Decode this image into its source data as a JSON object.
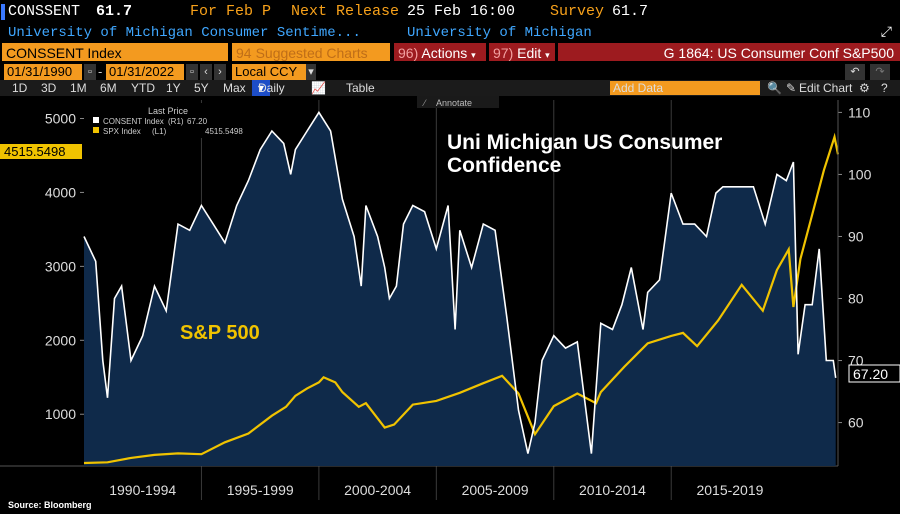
{
  "header": {
    "ticker": "CONSSENT",
    "value": "61.7",
    "period_label": "For Feb P",
    "next_release_label": "Next Release",
    "next_release_value": "25 Feb 16:00",
    "survey_label": "Survey",
    "survey_value": "61.7",
    "description": "University of Michigan Consumer Sentime...",
    "source_name": "University of Michigan",
    "expand_icon": "expand-icon"
  },
  "toolbar": {
    "security": "CONSSENT Index",
    "suggested": "Suggested Charts",
    "suggested_num": "94",
    "actions": "Actions",
    "actions_num": "96)",
    "edit": "Edit",
    "edit_num": "97)",
    "chart_id": "G 1864: US Consumer Conf S&P500",
    "start_date": "01/31/1990",
    "end_date": "01/31/2022",
    "currency": "Local CCY",
    "ranges": [
      "1D",
      "3D",
      "1M",
      "6M",
      "YTD",
      "1Y",
      "5Y",
      "Max"
    ],
    "frequency": "Daily",
    "table": "Table",
    "add_data": "Add Data",
    "edit_chart": "Edit Chart",
    "annotate": "Annotate"
  },
  "colors": {
    "consent": "#ffffff",
    "spx": "#f0c300",
    "area": "#0f2a4a",
    "accent": "#f39a1f",
    "red_bar": "#9d1b1f",
    "selected": "#1d4dc7"
  },
  "chart_data": {
    "type": "line",
    "title": "Uni Michigan US Consumer Confidence",
    "annotation": "S&P 500",
    "legend_title": "Last Price",
    "legend": [
      {
        "name": "CONSENT Index",
        "axis": "R1",
        "last": "67.20",
        "color": "#ffffff"
      },
      {
        "name": "SPX Index",
        "axis": "L1",
        "last": "4515.5498",
        "color": "#f0c300"
      }
    ],
    "left_axis": {
      "ticks": [
        1000,
        2000,
        3000,
        4000,
        5000
      ],
      "range": [
        300,
        5250
      ],
      "last_label": "4515.5498",
      "last_value": 4515.5498
    },
    "right_axis": {
      "ticks": [
        60,
        70,
        80,
        90,
        100,
        110
      ],
      "range": [
        53,
        112
      ],
      "last_label": "67.20",
      "last_value": 67.2
    },
    "x_range": [
      1990.0,
      2022.1
    ],
    "x_groups": [
      "1990-1994",
      "1995-1999",
      "2000-2004",
      "2005-2009",
      "2010-2014",
      "2015-2019"
    ],
    "spx": {
      "x": [
        1990.0,
        1991.0,
        1992.0,
        1993.0,
        1994.0,
        1995.0,
        1996.0,
        1997.0,
        1998.0,
        1998.6,
        1999.0,
        1999.5,
        2000.0,
        2000.2,
        2000.7,
        2001.0,
        2001.7,
        2002.0,
        2002.8,
        2003.2,
        2004.0,
        2005.0,
        2006.0,
        2007.0,
        2007.8,
        2008.5,
        2009.2,
        2010.0,
        2011.0,
        2011.8,
        2012.0,
        2013.0,
        2014.0,
        2015.0,
        2015.5,
        2016.1,
        2017.0,
        2018.0,
        2018.9,
        2019.5,
        2020.0,
        2020.2,
        2020.5,
        2021.0,
        2021.5,
        2021.95,
        2022.1
      ],
      "y": [
        340,
        350,
        410,
        450,
        470,
        460,
        620,
        740,
        980,
        1100,
        1250,
        1350,
        1430,
        1500,
        1430,
        1300,
        1100,
        1150,
        820,
        860,
        1130,
        1180,
        1290,
        1420,
        1520,
        1280,
        730,
        1110,
        1280,
        1150,
        1300,
        1640,
        1960,
        2060,
        2100,
        1920,
        2270,
        2750,
        2400,
        2950,
        3230,
        2450,
        3100,
        3700,
        4300,
        4750,
        4515.5498
      ]
    },
    "consent": {
      "x": [
        1990.0,
        1990.5,
        1990.8,
        1991.0,
        1991.3,
        1991.6,
        1992.0,
        1992.5,
        1993.0,
        1993.5,
        1994.0,
        1994.5,
        1995.0,
        1995.5,
        1996.0,
        1996.5,
        1997.0,
        1997.5,
        1998.0,
        1998.5,
        1998.8,
        1999.0,
        1999.5,
        2000.0,
        2000.5,
        2001.0,
        2001.5,
        2001.8,
        2002.0,
        2002.5,
        2002.8,
        2003.0,
        2003.3,
        2003.6,
        2004.0,
        2004.5,
        2005.0,
        2005.5,
        2005.8,
        2006.0,
        2006.5,
        2007.0,
        2007.5,
        2008.0,
        2008.5,
        2008.9,
        2009.2,
        2009.5,
        2010.0,
        2010.5,
        2011.0,
        2011.6,
        2012.0,
        2012.5,
        2012.9,
        2013.3,
        2013.8,
        2014.0,
        2014.5,
        2015.0,
        2015.5,
        2016.0,
        2016.5,
        2016.9,
        2017.2,
        2017.8,
        2018.0,
        2018.5,
        2019.0,
        2019.5,
        2019.9,
        2020.2,
        2020.4,
        2020.7,
        2021.0,
        2021.3,
        2021.6,
        2021.9,
        2022.0
      ],
      "y": [
        90,
        86,
        70,
        64,
        80,
        82,
        70,
        74,
        82,
        78,
        92,
        91,
        95,
        92,
        89,
        95,
        99,
        104,
        107,
        105,
        100,
        104,
        107,
        110,
        107,
        96,
        90,
        82,
        95,
        90,
        85,
        80,
        82,
        92,
        95,
        94,
        88,
        95,
        75,
        91,
        85,
        92,
        91,
        77,
        62,
        55,
        60,
        70,
        74,
        72,
        73,
        55,
        76,
        75,
        79,
        85,
        75,
        81,
        83,
        97,
        92,
        92,
        90,
        97,
        98,
        98,
        98,
        98,
        92,
        100,
        99,
        102,
        71,
        79,
        79,
        88,
        70,
        70,
        67.2
      ]
    }
  },
  "footer": {
    "source": "Source: Bloomberg"
  }
}
